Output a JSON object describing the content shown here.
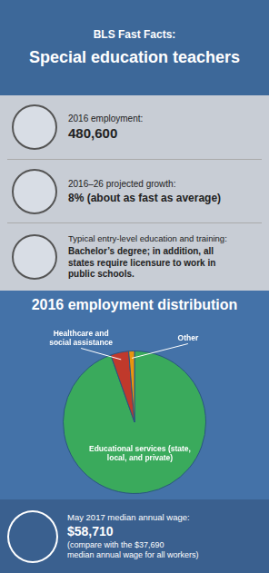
{
  "chart_data": {
    "type": "pie",
    "title": "2016 employment distribution",
    "categories": [
      "Educational services (state,\nlocal, and private)",
      "Healthcare and\nsocial assistance",
      "Other"
    ],
    "values": [
      94.6,
      4.1,
      1.3
    ],
    "colors": [
      "#3aaa5c",
      "#c0392b",
      "#e8950e"
    ],
    "annotations": [
      "BLS Fast Facts:",
      "Special education teachers",
      "2016 employment:",
      "480,600",
      "2016–26 projected growth:",
      "8% (about as fast as average)",
      "Typical entry-level education and training:",
      "Bachelor’s degree; in addition, all\nstates require licensure to work in\npublic schools.",
      "May 2017 median annual wage:",
      "$58,710",
      "(compare with the $37,690\nmedian annual wage for all workers)"
    ]
  }
}
